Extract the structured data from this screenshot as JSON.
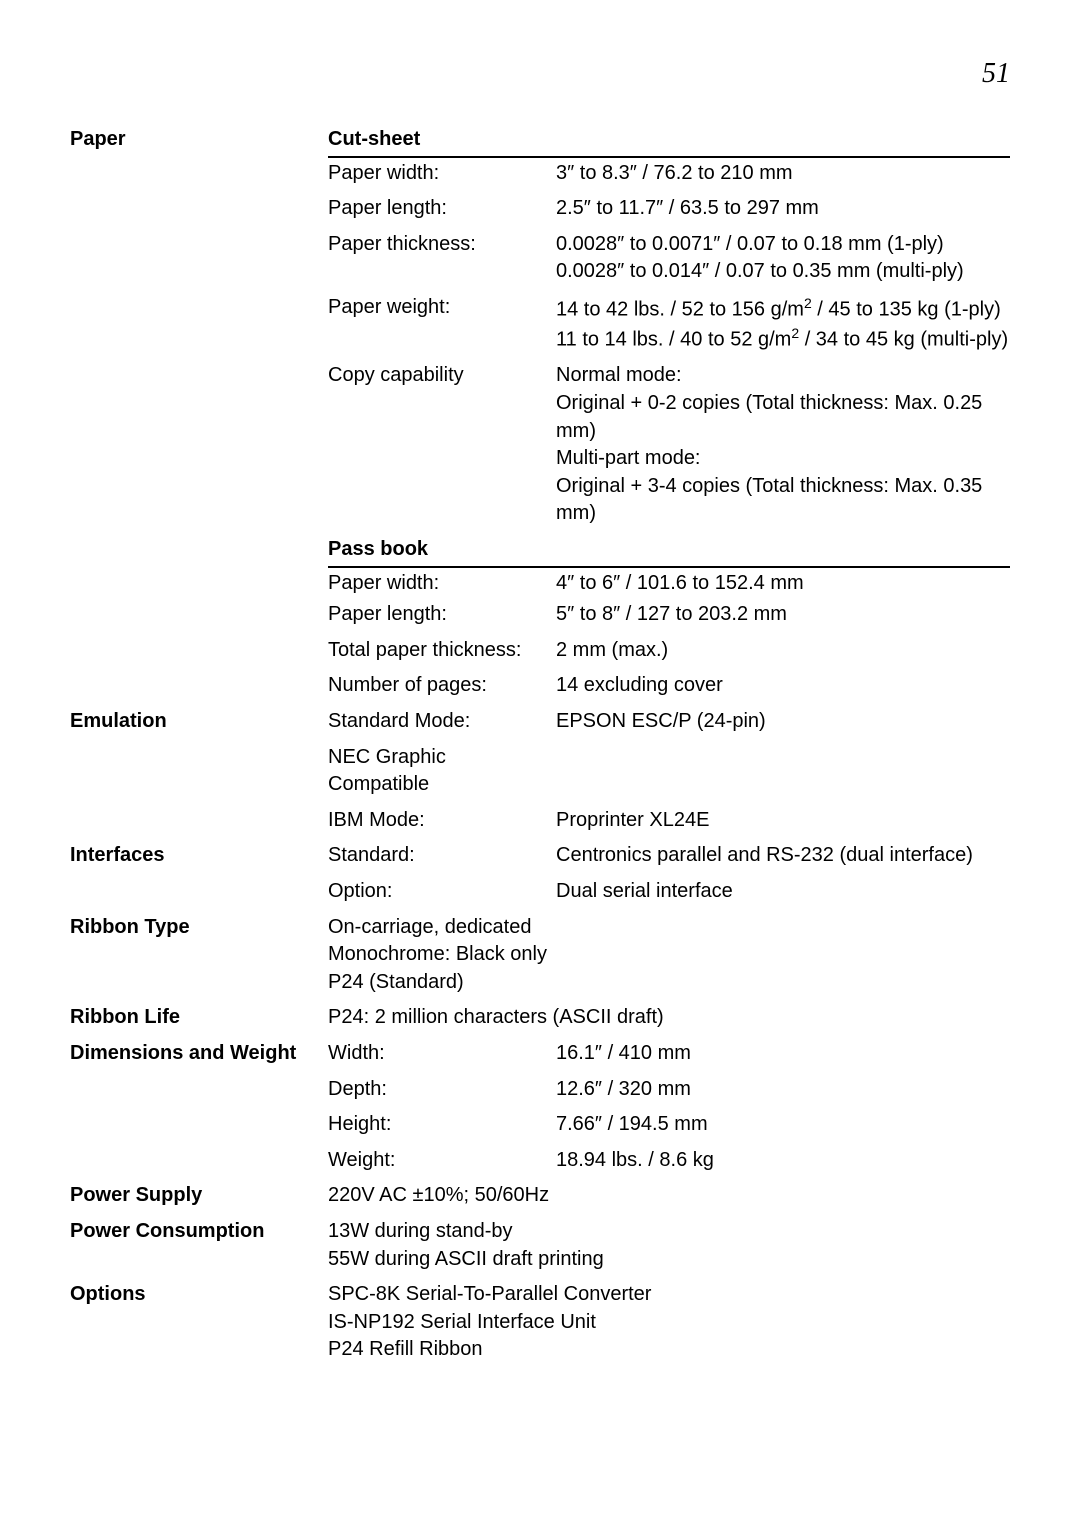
{
  "pageNumber": "51",
  "paper": {
    "heading": "Paper",
    "cutSheetHeading": "Cut-sheet",
    "cutSheet": [
      {
        "label": "Paper width:",
        "value": "3″ to 8.3″ / 76.2 to 210 mm"
      },
      {
        "label": "Paper length:",
        "value": "2.5″ to 11.7″ / 63.5 to 297 mm"
      },
      {
        "label": "Paper thickness:",
        "value": "0.0028″ to 0.0071″ / 0.07 to 0.18 mm (1-ply)\n0.0028″ to 0.014″ / 0.07 to 0.35 mm (multi-ply)"
      },
      {
        "label": "Paper weight:",
        "value": "14 to 42 lbs. / 52 to 156 g/m² / 45 to 135 kg (1-ply)\n11 to 14 lbs. / 40 to 52 g/m² / 34 to 45 kg (multi-ply)"
      },
      {
        "label": "Copy capability",
        "value": "Normal mode:\nOriginal + 0-2 copies (Total thickness: Max. 0.25 mm)\nMulti-part mode:\nOriginal + 3-4 copies (Total thickness: Max. 0.35 mm)"
      }
    ],
    "passBookHeading": "Pass book",
    "passBook": [
      {
        "label": "Paper width:",
        "value": "4″ to 6″ / 101.6 to 152.4 mm"
      },
      {
        "label": "Paper length:",
        "value": "5″ to 8″ / 127 to 203.2 mm"
      },
      {
        "label": "Total paper thickness:",
        "value": "2 mm (max.)"
      },
      {
        "label": "Number of pages:",
        "value": "14 excluding cover"
      }
    ]
  },
  "emulation": {
    "heading": "Emulation",
    "rows": [
      {
        "label": "Standard Mode:",
        "value": "EPSON ESC/P (24-pin)"
      },
      {
        "label": "NEC Graphic Compatible",
        "value": ""
      },
      {
        "label": "IBM Mode:",
        "value": "Proprinter XL24E"
      }
    ]
  },
  "interfaces": {
    "heading": "Interfaces",
    "rows": [
      {
        "label": "Standard:",
        "value": "Centronics parallel and RS-232 (dual interface)"
      },
      {
        "label": "Option:",
        "value": "Dual serial interface"
      }
    ]
  },
  "ribbonType": {
    "heading": "Ribbon Type",
    "value": "On-carriage, dedicated\nMonochrome: Black only\nP24 (Standard)"
  },
  "ribbonLife": {
    "heading": "Ribbon Life",
    "value": "P24: 2 million characters (ASCII draft)"
  },
  "dimensions": {
    "heading": "Dimensions and Weight",
    "rows": [
      {
        "label": "Width:",
        "value": "16.1″ / 410 mm"
      },
      {
        "label": "Depth:",
        "value": "12.6″ / 320 mm"
      },
      {
        "label": "Height:",
        "value": "7.66″ / 194.5 mm"
      },
      {
        "label": "Weight:",
        "value": "18.94 lbs. / 8.6 kg"
      }
    ]
  },
  "powerSupply": {
    "heading": "Power Supply",
    "value": "220V AC ±10%; 50/60Hz"
  },
  "powerConsumption": {
    "heading": "Power Consumption",
    "value": "13W during stand-by\n55W during ASCII draft printing"
  },
  "options": {
    "heading": "Options",
    "value": "SPC-8K Serial-To-Parallel Converter\nIS-NP192 Serial Interface Unit\nP24 Refill Ribbon"
  }
}
